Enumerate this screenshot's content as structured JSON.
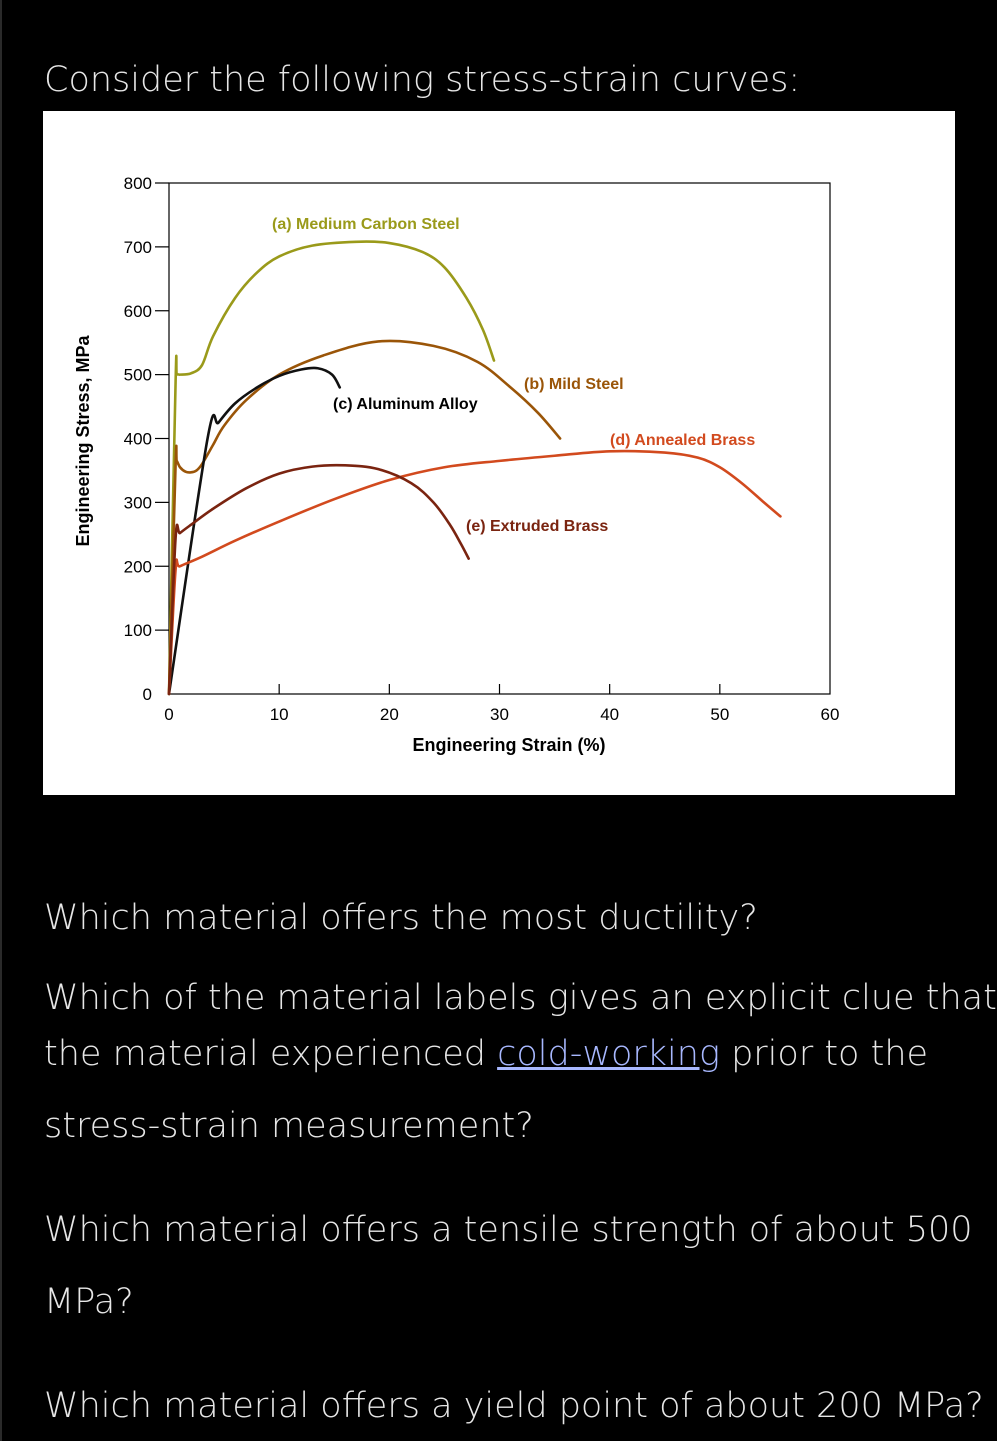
{
  "intro_text": "Consider the following stress-strain curves:",
  "questions": [
    {
      "text": "Which material offers the most ductility?"
    },
    {
      "line1": "Which of the material labels gives an explicit clue that",
      "line2_prefix": "the material experienced ",
      "link_text": "cold-working",
      "line2_suffix": " prior to the",
      "line3": "stress-strain measurement?"
    },
    {
      "line1": "Which material offers a tensile strength of about 500",
      "line2": "MPa?"
    },
    {
      "text": "Which material offers a yield point of about 200 MPa?"
    }
  ],
  "colors": {
    "link": "#a8b8ff"
  },
  "chart_data": {
    "type": "line",
    "xlabel": "Engineering Strain (%)",
    "ylabel": "Engineering Stress, MPa",
    "xlim": [
      0,
      60
    ],
    "ylim": [
      0,
      800
    ],
    "xticks": [
      0,
      10,
      20,
      30,
      40,
      50,
      60
    ],
    "yticks": [
      0,
      100,
      200,
      300,
      400,
      500,
      600,
      700,
      800
    ],
    "grid": false,
    "series": [
      {
        "name": "(a) Medium Carbon Steel",
        "color": "#9a9a1a",
        "x": [
          0,
          0.6,
          0.7,
          1.0,
          2.0,
          3.0,
          4.0,
          6,
          8,
          10,
          13,
          17,
          20,
          23,
          25,
          27,
          28.5,
          29.5
        ],
        "y": [
          0,
          490,
          500,
          500,
          502,
          515,
          560,
          620,
          660,
          685,
          702,
          708,
          706,
          692,
          668,
          620,
          570,
          522
        ]
      },
      {
        "name": "(b) Mild Steel",
        "color": "#9a5508",
        "x": [
          0,
          0.6,
          0.7,
          1.0,
          1.5,
          2.0,
          2.5,
          3.0,
          4,
          5,
          7,
          10,
          14,
          19,
          24,
          28,
          31,
          33.5,
          35.5
        ],
        "y": [
          0,
          360,
          365,
          355,
          348,
          347,
          350,
          360,
          390,
          420,
          460,
          500,
          530,
          552,
          545,
          520,
          480,
          440,
          400
        ]
      },
      {
        "name": "(c) Aluminum Alloy",
        "color": "#111111",
        "x": [
          0,
          3.5,
          4.5,
          6,
          8,
          10,
          12,
          13.5,
          14.8,
          15.5
        ],
        "y": [
          0,
          400,
          425,
          455,
          480,
          498,
          508,
          510,
          500,
          480
        ]
      },
      {
        "name": "(d) Annealed Brass",
        "color": "#d24a1e",
        "x": [
          0,
          0.6,
          1.0,
          3,
          6,
          10,
          15,
          20,
          25,
          30,
          35,
          40,
          45,
          48,
          50,
          52,
          54,
          55.5
        ],
        "y": [
          0,
          195,
          200,
          215,
          240,
          270,
          305,
          335,
          355,
          365,
          373,
          380,
          378,
          370,
          355,
          330,
          300,
          278
        ]
      },
      {
        "name": "(e) Extruded Brass",
        "color": "#7a2410",
        "x": [
          0,
          0.6,
          1.0,
          2,
          4,
          7,
          10,
          13,
          16,
          19,
          22,
          24,
          25.5,
          26.5,
          27.2
        ],
        "y": [
          0,
          245,
          252,
          265,
          290,
          322,
          345,
          356,
          358,
          352,
          330,
          300,
          265,
          235,
          212
        ]
      }
    ]
  }
}
